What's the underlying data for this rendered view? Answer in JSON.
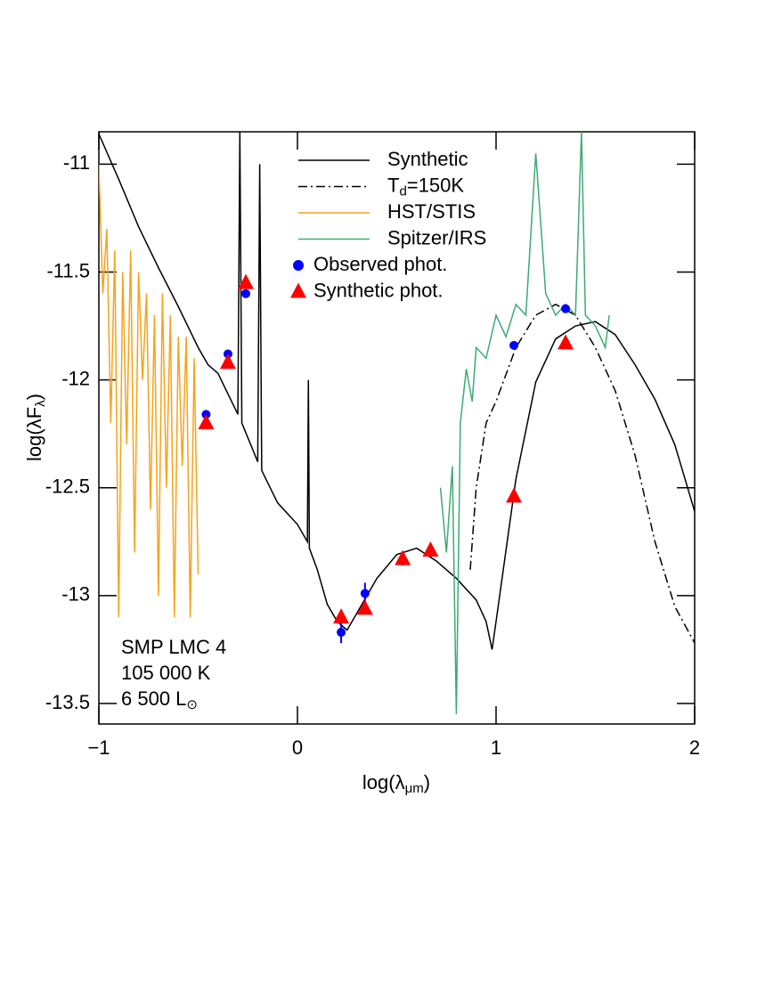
{
  "chart_data": {
    "type": "line",
    "xlabel": [
      "log(λ",
      "μm",
      ")"
    ],
    "ylabel": [
      "log(λF",
      "λ",
      ")"
    ],
    "xlim": [
      -1,
      2
    ],
    "ylim": [
      -13.595,
      -10.85
    ],
    "xticks": [
      {
        "value": -1,
        "label": "−1"
      },
      0,
      1,
      2
    ],
    "yticks": [
      -11,
      -11.5,
      -12,
      -12.5,
      -13,
      -13.5
    ],
    "annotations": [
      [
        "SMP  LMC  4"
      ],
      [
        "105 000 K"
      ],
      [
        "6 500 L",
        "⊙"
      ]
    ],
    "series": [
      {
        "name": [
          "Synthetic"
        ],
        "color": "#000000",
        "style": "solid",
        "x": [
          -1,
          -0.9,
          -0.8,
          -0.7,
          -0.6,
          -0.5,
          -0.45,
          -0.4,
          -0.3,
          -0.29,
          -0.28,
          -0.2,
          -0.19,
          -0.18,
          -0.1,
          0,
          0.05,
          0.055,
          0.06,
          0.1,
          0.15,
          0.2,
          0.25,
          0.3,
          0.4,
          0.5,
          0.6,
          0.7,
          0.8,
          0.9,
          0.95,
          0.98,
          1.0,
          1.05,
          1.1,
          1.2,
          1.3,
          1.4,
          1.5,
          1.6,
          1.7,
          1.8,
          1.9,
          2.0
        ],
        "values": [
          -10.86,
          -11.07,
          -11.29,
          -11.48,
          -11.66,
          -11.85,
          -11.93,
          -11.97,
          -12.16,
          -10.85,
          -12.2,
          -12.38,
          -11.0,
          -12.42,
          -12.57,
          -12.67,
          -12.75,
          -12.0,
          -12.78,
          -12.88,
          -13.04,
          -13.12,
          -13.16,
          -13.08,
          -12.92,
          -12.81,
          -12.78,
          -12.84,
          -12.92,
          -13.02,
          -13.12,
          -13.25,
          -13.12,
          -12.79,
          -12.46,
          -12.01,
          -11.81,
          -11.75,
          -11.73,
          -11.79,
          -11.93,
          -12.09,
          -12.3,
          -12.61
        ]
      },
      {
        "name": [
          "T",
          "d",
          "=150K"
        ],
        "color": "#000000",
        "style": "dashdot",
        "x": [
          0.87,
          0.9,
          0.95,
          1.0,
          1.1,
          1.2,
          1.3,
          1.4,
          1.5,
          1.6,
          1.7,
          1.8,
          1.9,
          2.0
        ],
        "values": [
          -12.88,
          -12.5,
          -12.2,
          -12.1,
          -11.85,
          -11.7,
          -11.65,
          -11.7,
          -11.85,
          -12.05,
          -12.35,
          -12.75,
          -13.05,
          -13.22
        ]
      },
      {
        "name": [
          "HST/STIS"
        ],
        "color": "#f7a21b",
        "style": "solid",
        "x": [
          -1,
          -0.98,
          -0.96,
          -0.94,
          -0.92,
          -0.9,
          -0.88,
          -0.86,
          -0.84,
          -0.82,
          -0.8,
          -0.78,
          -0.76,
          -0.74,
          -0.72,
          -0.7,
          -0.68,
          -0.66,
          -0.64,
          -0.62,
          -0.6,
          -0.58,
          -0.56,
          -0.54,
          -0.52,
          -0.5
        ],
        "values": [
          -11.0,
          -11.6,
          -11.3,
          -12.2,
          -11.4,
          -13.1,
          -11.5,
          -12.3,
          -11.4,
          -12.8,
          -11.5,
          -12.0,
          -11.6,
          -12.6,
          -11.7,
          -13.0,
          -11.6,
          -12.5,
          -11.7,
          -13.1,
          -11.8,
          -12.4,
          -11.8,
          -13.1,
          -11.9,
          -12.9
        ]
      },
      {
        "name": [
          "Spitzer/IRS"
        ],
        "color": "#3cab74",
        "style": "solid",
        "x": [
          0.72,
          0.75,
          0.78,
          0.8,
          0.82,
          0.85,
          0.88,
          0.9,
          0.95,
          1.0,
          1.05,
          1.1,
          1.15,
          1.2,
          1.25,
          1.3,
          1.35,
          1.4,
          1.43,
          1.45,
          1.5,
          1.55,
          1.57
        ],
        "values": [
          -12.5,
          -12.8,
          -12.4,
          -13.55,
          -12.2,
          -11.95,
          -12.1,
          -11.85,
          -11.9,
          -11.7,
          -11.8,
          -11.65,
          -11.7,
          -10.95,
          -11.6,
          -11.7,
          -11.65,
          -11.7,
          -10.85,
          -11.7,
          -11.75,
          -11.85,
          -11.7
        ]
      },
      {
        "name": [
          "Observed phot."
        ],
        "color": "#0000ff",
        "style": "circles",
        "x": [
          -0.46,
          -0.35,
          -0.26,
          0.22,
          0.34,
          0.53,
          0.67,
          1.09,
          1.35
        ],
        "values": [
          -12.16,
          -11.88,
          -11.6,
          -13.17,
          -12.99,
          -12.84,
          -12.8,
          -11.84,
          -11.67
        ],
        "errors": [
          0.02,
          0.02,
          0.02,
          0.05,
          0.05,
          0.02,
          0.02,
          0.02,
          0.02
        ]
      },
      {
        "name": [
          "Synthetic phot."
        ],
        "color": "#ff0000",
        "style": "triangles",
        "x": [
          -0.46,
          -0.35,
          -0.26,
          0.22,
          0.34,
          0.53,
          0.67,
          1.09,
          1.35
        ],
        "values": [
          -12.2,
          -11.92,
          -11.55,
          -13.1,
          -13.06,
          -12.83,
          -12.79,
          -12.54,
          -11.83
        ]
      }
    ]
  }
}
